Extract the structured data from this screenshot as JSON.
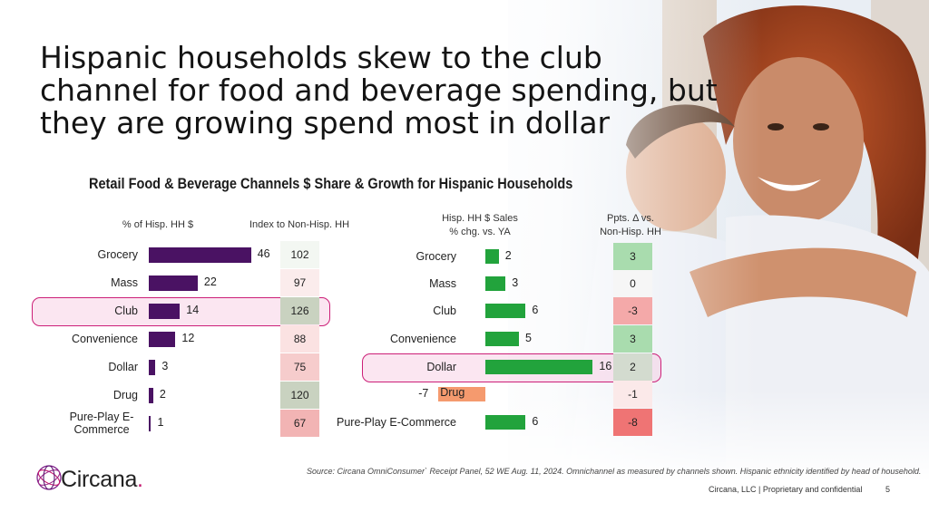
{
  "slide": {
    "title": "Hispanic households skew to the club channel for food and beverage spending, but they are growing spend most in dollar",
    "page_number": "5",
    "footer": "Circana, LLC  |  Proprietary and confidential",
    "source": "Source: Circana OmniConsumer` Receipt Panel, 52 WE Aug. 11, 2024. Omnichannel as measured by channels shown. Hispanic ethnicity identified by head of household.",
    "logo": {
      "name": "Circana",
      "dot": "."
    }
  },
  "chart_data": {
    "type": "bar",
    "title": "Retail Food & Beverage Channels $ Share & Growth for Hispanic Households",
    "left_panel": {
      "categories": [
        "Grocery",
        "Mass",
        "Club",
        "Convenience",
        "Dollar",
        "Drug",
        "Pure-Play E-Commerce"
      ],
      "share_header": "% of Hisp. HH $",
      "share_values": [
        46,
        22,
        14,
        12,
        3,
        2,
        1
      ],
      "index_header": "Index to Non-Hisp. HH",
      "index_values": [
        102,
        97,
        126,
        88,
        75,
        120,
        67
      ],
      "bar_color": "#4a1263",
      "highlight": "Club"
    },
    "right_panel": {
      "categories": [
        "Grocery",
        "Mass",
        "Club",
        "Convenience",
        "Dollar",
        "Drug",
        "Pure-Play E-Commerce"
      ],
      "growth_header": "Hisp. HH $ Sales % chg. vs. YA",
      "growth_values": [
        2,
        3,
        6,
        5,
        16,
        -7,
        6
      ],
      "pts_header": "Ppts. Δ vs. Non-Hisp. HH",
      "pts_values": [
        3,
        0,
        -3,
        3,
        2,
        -1,
        -8
      ],
      "positive_color": "#22a33c",
      "negative_color": "#f59a6e",
      "highlight": "Dollar"
    }
  }
}
